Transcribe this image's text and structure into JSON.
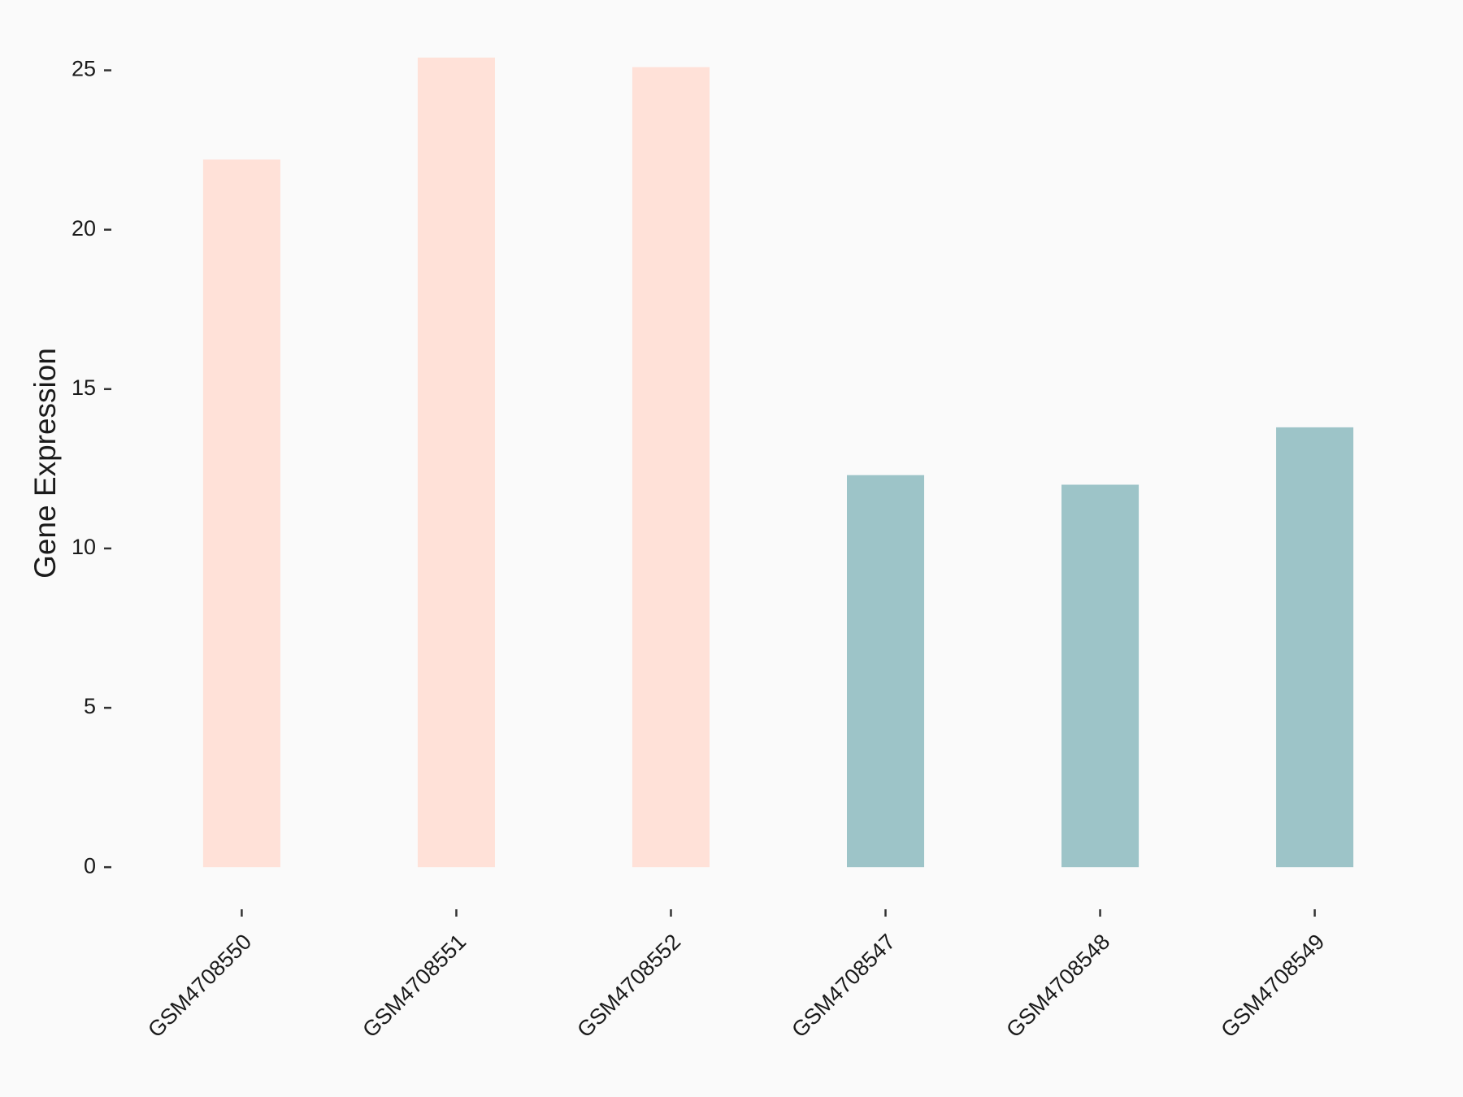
{
  "chart_data": {
    "type": "bar",
    "y_label": "Gene Expression",
    "categories": [
      "GSM4708550",
      "GSM4708551",
      "GSM4708552",
      "GSM4708547",
      "GSM4708548",
      "GSM4708549"
    ],
    "values": [
      22.2,
      25.4,
      25.1,
      12.3,
      12.0,
      13.8
    ],
    "colors": [
      "#ffe1d8",
      "#ffe1d8",
      "#ffe1d8",
      "#9dc4c8",
      "#9dc4c8",
      "#9dc4c8"
    ],
    "ylim": [
      -1.27,
      26.62
    ],
    "yticks": [
      0,
      5,
      10,
      15,
      20,
      25
    ],
    "grid": false
  }
}
